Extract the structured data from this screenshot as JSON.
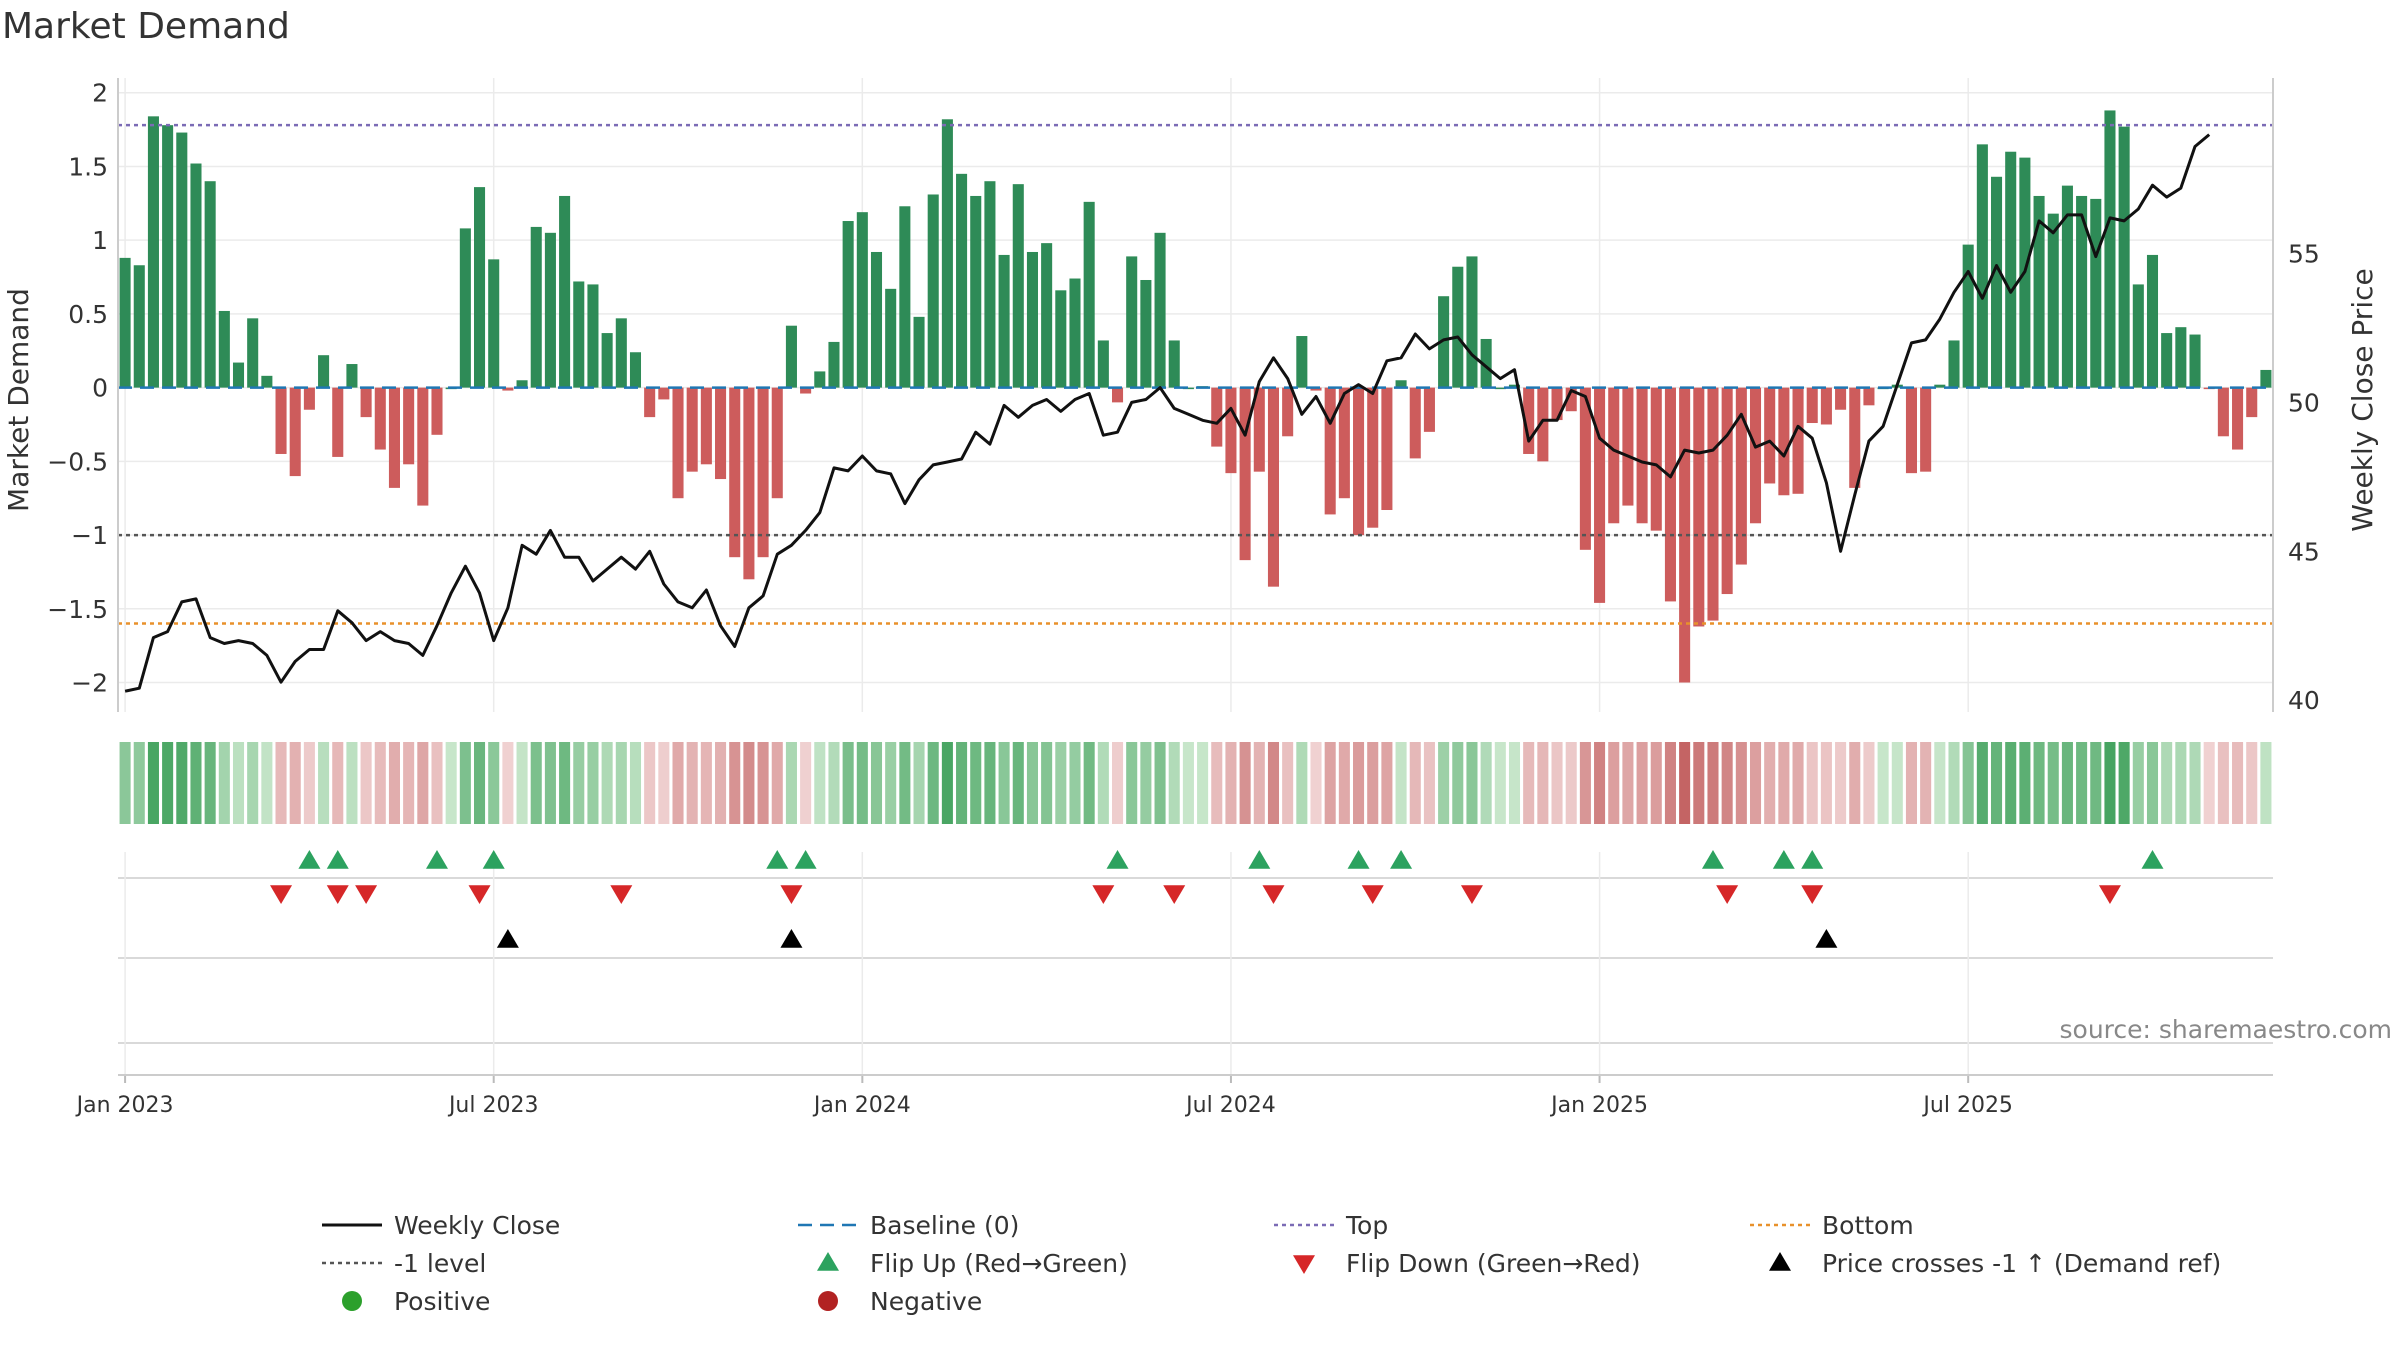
{
  "chart_data": {
    "type": "bar",
    "title": "Market Demand",
    "ylabel": "Market Demand",
    "y2label": "Weekly Close Price",
    "ylim": [
      -2.2,
      2.1
    ],
    "y2lim": [
      39.6,
      60.9
    ],
    "yticks": [
      "2",
      "1.5",
      "1",
      "0.5",
      "0",
      "−0.5",
      "−1",
      "−1.5",
      "−2"
    ],
    "yticks_values": [
      2,
      1.5,
      1,
      0.5,
      0,
      -0.5,
      -1,
      -1.5,
      -2
    ],
    "y2ticks": [
      "55",
      "50",
      "45",
      "40"
    ],
    "y2ticks_values": [
      55,
      50,
      45,
      40
    ],
    "xticks": [
      "Jan 2023",
      "Jul 2023",
      "Jan 2024",
      "Jul 2024",
      "Jan 2025",
      "Jul 2025"
    ],
    "xticks_week_index": [
      0.5,
      26.5,
      52.5,
      78.5,
      104.5,
      130.5
    ],
    "levels": {
      "top": 1.78,
      "bottom": -1.6,
      "minus_one": -1
    },
    "demand": [
      0.88,
      0.83,
      1.84,
      1.78,
      1.73,
      1.52,
      1.4,
      0.52,
      0.17,
      0.47,
      0.08,
      -0.45,
      -0.6,
      -0.15,
      0.22,
      -0.47,
      0.16,
      -0.2,
      -0.42,
      -0.68,
      -0.52,
      -0.8,
      -0.32,
      0.0,
      1.08,
      1.36,
      0.87,
      -0.02,
      0.05,
      1.09,
      1.05,
      1.3,
      0.72,
      0.7,
      0.37,
      0.47,
      0.24,
      -0.2,
      -0.08,
      -0.75,
      -0.57,
      -0.52,
      -0.62,
      -1.15,
      -1.3,
      -1.15,
      -0.75,
      0.42,
      -0.04,
      0.11,
      0.31,
      1.13,
      1.19,
      0.92,
      0.67,
      1.23,
      0.48,
      1.31,
      1.82,
      1.45,
      1.3,
      1.4,
      0.9,
      1.38,
      0.92,
      0.98,
      0.66,
      0.74,
      1.26,
      0.32,
      -0.1,
      0.89,
      0.73,
      1.05,
      0.32,
      0.0,
      0.01,
      -0.4,
      -0.58,
      -1.17,
      -0.57,
      -1.35,
      -0.33,
      0.35,
      -0.02,
      -0.86,
      -0.75,
      -1.0,
      -0.95,
      -0.83,
      0.05,
      -0.48,
      -0.3,
      0.62,
      0.82,
      0.89,
      0.33,
      0.0,
      0.02,
      -0.45,
      -0.5,
      -0.22,
      -0.16,
      -1.1,
      -1.46,
      -0.92,
      -0.8,
      -0.92,
      -0.97,
      -1.45,
      -2.0,
      -1.62,
      -1.58,
      -1.4,
      -1.2,
      -0.92,
      -0.65,
      -0.73,
      -0.72,
      -0.24,
      -0.25,
      -0.15,
      -0.68,
      -0.12,
      0.0,
      0.02,
      -0.58,
      -0.57,
      0.02,
      0.32,
      0.97,
      1.65,
      1.43,
      1.6,
      1.56,
      1.3,
      1.18,
      1.37,
      1.3,
      1.28,
      1.88,
      1.77,
      0.7,
      0.9,
      0.37,
      0.41,
      0.36,
      -0.01,
      -0.33,
      -0.42,
      -0.2,
      0.12
    ],
    "close": [
      40.3,
      40.4,
      42.1,
      42.3,
      43.3,
      43.4,
      42.1,
      41.9,
      42.0,
      41.9,
      41.5,
      40.6,
      41.3,
      41.7,
      41.7,
      43.0,
      42.6,
      42.0,
      42.3,
      42.0,
      41.9,
      41.5,
      42.5,
      43.6,
      44.5,
      43.6,
      42.0,
      43.1,
      45.2,
      44.9,
      45.7,
      44.8,
      44.8,
      44.0,
      44.4,
      44.8,
      44.4,
      45.0,
      43.9,
      43.3,
      43.1,
      43.7,
      42.5,
      41.8,
      43.1,
      43.5,
      44.9,
      45.2,
      45.7,
      46.3,
      47.8,
      47.7,
      48.2,
      47.7,
      47.6,
      46.6,
      47.4,
      47.9,
      48.0,
      48.1,
      49.0,
      48.6,
      49.9,
      49.5,
      49.9,
      50.1,
      49.7,
      50.1,
      50.3,
      48.9,
      49.0,
      50.0,
      50.1,
      50.5,
      49.8,
      49.6,
      49.4,
      49.3,
      49.8,
      48.9,
      50.7,
      51.5,
      50.8,
      49.6,
      50.2,
      49.3,
      50.3,
      50.6,
      50.3,
      51.4,
      51.5,
      52.3,
      51.8,
      52.1,
      52.2,
      51.6,
      51.2,
      50.8,
      51.1,
      48.7,
      49.4,
      49.4,
      50.4,
      50.2,
      48.8,
      48.4,
      48.2,
      48.0,
      47.9,
      47.5,
      48.4,
      48.3,
      48.4,
      48.9,
      49.6,
      48.5,
      48.7,
      48.2,
      49.2,
      48.8,
      47.3,
      45.0,
      46.9,
      48.7,
      49.2,
      50.6,
      52.0,
      52.1,
      52.8,
      53.7,
      54.4,
      53.5,
      54.6,
      53.7,
      54.4,
      56.1,
      55.7,
      56.3,
      56.3,
      54.9,
      56.2,
      56.1,
      56.5,
      57.3,
      56.9,
      57.2,
      58.6,
      59.0
    ],
    "heat_strip": "weekly demand colour strip (green positive, red negative)",
    "flip_up_weeks": [
      13,
      15,
      22,
      26,
      46,
      48,
      70,
      80,
      87,
      90,
      112,
      117,
      119,
      143
    ],
    "flip_down_weeks": [
      11,
      15,
      17,
      25,
      35,
      47,
      69,
      74,
      81,
      88,
      95,
      113,
      119,
      140
    ],
    "price_cross_weeks": [
      27,
      47,
      120
    ],
    "legend": [
      {
        "label": "Weekly Close",
        "symbol": "line-solid",
        "color": "#111111"
      },
      {
        "label": "Baseline (0)",
        "symbol": "line-dashed",
        "color": "#1f77b4"
      },
      {
        "label": "Top",
        "symbol": "line-dotted",
        "color": "#7b6bb5"
      },
      {
        "label": "Bottom",
        "symbol": "line-dotted",
        "color": "#e8912b"
      },
      {
        "label": "-1 level",
        "symbol": "line-dotted",
        "color": "#555555"
      },
      {
        "label": "Flip Up (Red→Green)",
        "symbol": "triangle-up",
        "color": "#2ca25f"
      },
      {
        "label": "Flip Down (Green→Red)",
        "symbol": "triangle-down",
        "color": "#d62728"
      },
      {
        "label": "Price crosses -1 ↑ (Demand ref)",
        "symbol": "triangle-up",
        "color": "#000000"
      },
      {
        "label": "Positive",
        "symbol": "circle",
        "color": "#2ca02c"
      },
      {
        "label": "Negative",
        "symbol": "circle",
        "color": "#b22222"
      }
    ],
    "source": "source: sharemaestro.com",
    "colors": {
      "pos_bar": "#2e8b57",
      "neg_bar": "#cd5c5c",
      "close_line": "#111111",
      "grid": "#ebebeb",
      "axis": "#cccccc"
    }
  }
}
